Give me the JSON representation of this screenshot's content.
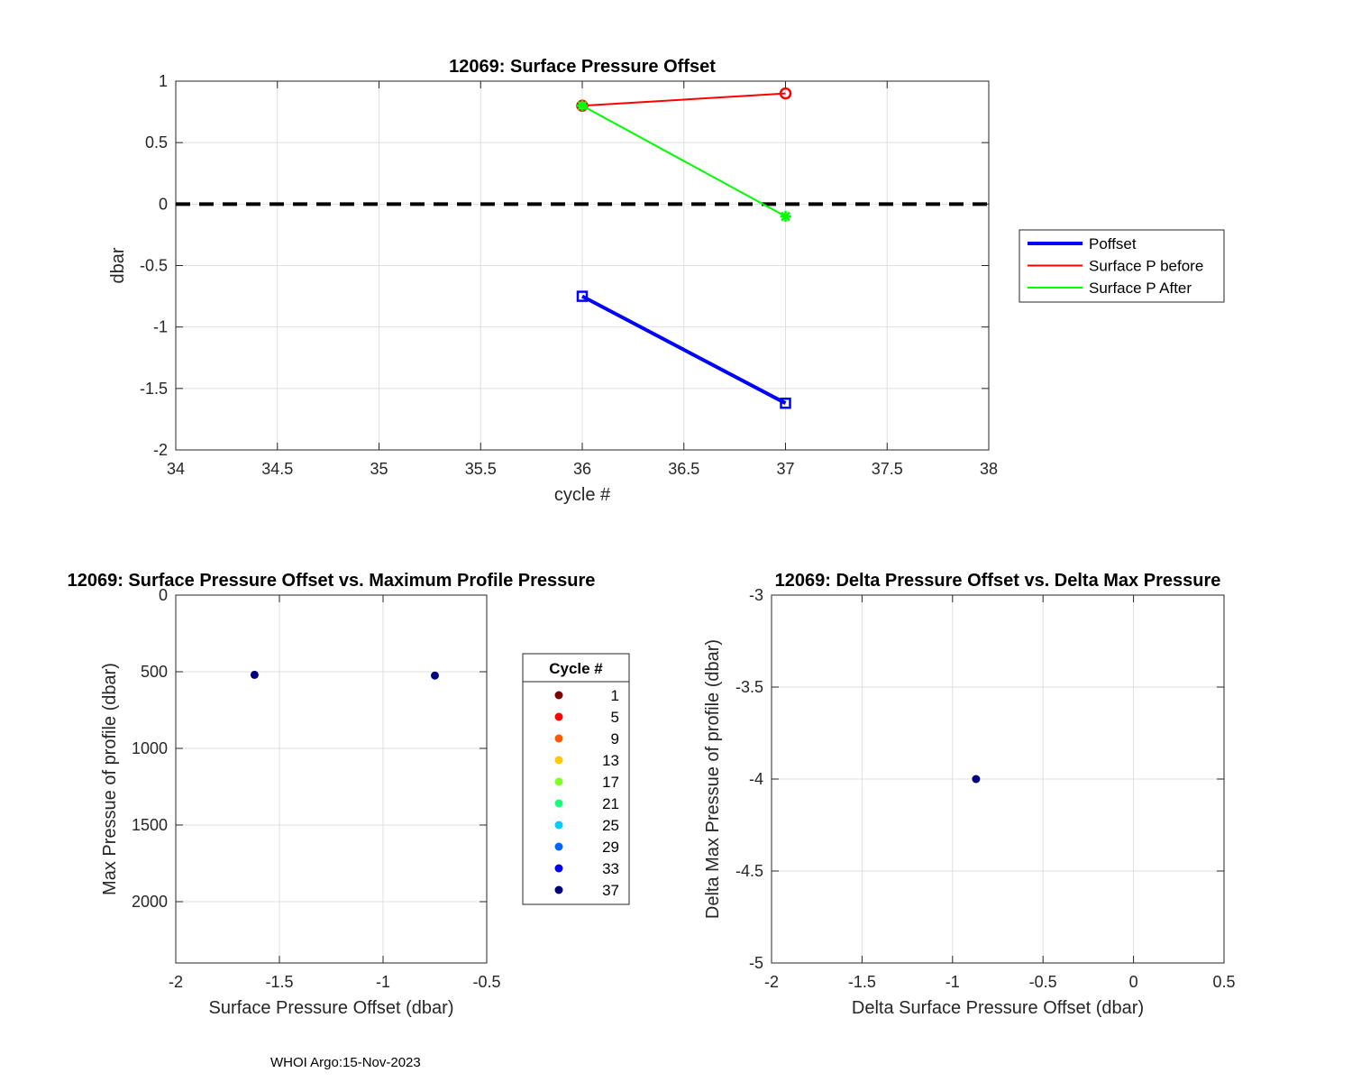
{
  "footer": "WHOI Argo:15-Nov-2023",
  "chart_data": [
    {
      "type": "line",
      "title": "12069: Surface Pressure Offset",
      "xlabel": "cycle #",
      "ylabel": "dbar",
      "xlim": [
        34,
        38
      ],
      "ylim": [
        -2,
        1
      ],
      "xticks": [
        34,
        34.5,
        35,
        35.5,
        36,
        36.5,
        37,
        37.5,
        38
      ],
      "xtick_labels": [
        "34",
        "34.5",
        "35",
        "35.5",
        "36",
        "36.5",
        "37",
        "37.5",
        "38"
      ],
      "yticks": [
        -2,
        -1.5,
        -1,
        -0.5,
        0,
        0.5,
        1
      ],
      "ytick_labels": [
        "-2",
        "-1.5",
        "-1",
        "-0.5",
        "0",
        "0.5",
        "1"
      ],
      "grid": true,
      "legend_position": "outside-right",
      "reference_line": {
        "y": 0,
        "style": "dashed",
        "color": "#000000"
      },
      "series": [
        {
          "name": "Poffset",
          "x": [
            36,
            37
          ],
          "y": [
            -0.75,
            -1.62
          ],
          "color": "#0000ff",
          "marker": "square",
          "width": "thick"
        },
        {
          "name": "Surface P before",
          "x": [
            36,
            37
          ],
          "y": [
            0.8,
            0.9
          ],
          "color": "#ff0000",
          "marker": "circle",
          "width": "thin"
        },
        {
          "name": "Surface P After",
          "x": [
            36,
            37
          ],
          "y": [
            0.8,
            -0.1
          ],
          "color": "#00ff00",
          "marker": "asterisk",
          "width": "thin"
        }
      ]
    },
    {
      "type": "scatter",
      "title": "12069: Surface Pressure Offset vs. Maximum Profile Pressure",
      "xlabel": "Surface Pressure Offset (dbar)",
      "ylabel": "Max Pressue of profile (dbar)",
      "xlim": [
        -2,
        -0.5
      ],
      "ylim": [
        0,
        2400
      ],
      "y_reversed": true,
      "xticks": [
        -2,
        -1.5,
        -1,
        -0.5
      ],
      "xtick_labels": [
        "-2",
        "-1.5",
        "-1",
        "-0.5"
      ],
      "yticks": [
        0,
        500,
        1000,
        1500,
        2000
      ],
      "ytick_labels": [
        "0",
        "500",
        "1000",
        "1500",
        "2000"
      ],
      "grid": true,
      "points": [
        {
          "x": -1.62,
          "y": 520,
          "color": "#00007f"
        },
        {
          "x": -0.75,
          "y": 525,
          "color": "#00007f"
        }
      ],
      "legend": {
        "title": "Cycle #",
        "entries": [
          {
            "label": "1",
            "color": "#800000"
          },
          {
            "label": "5",
            "color": "#ff0000"
          },
          {
            "label": "9",
            "color": "#ff5a00"
          },
          {
            "label": "13",
            "color": "#ffc800"
          },
          {
            "label": "17",
            "color": "#7fff2a"
          },
          {
            "label": "21",
            "color": "#1aff7a"
          },
          {
            "label": "25",
            "color": "#00ccff"
          },
          {
            "label": "29",
            "color": "#0066ff"
          },
          {
            "label": "33",
            "color": "#0000ee"
          },
          {
            "label": "37",
            "color": "#00007f"
          }
        ]
      }
    },
    {
      "type": "scatter",
      "title": "12069: Delta Pressure Offset vs. Delta Max Pressure",
      "xlabel": "Delta Surface Pressure Offset (dbar)",
      "ylabel": "Delta Max Pressue of profile (dbar)",
      "xlim": [
        -2,
        0.5
      ],
      "ylim": [
        -5,
        -3
      ],
      "xticks": [
        -2,
        -1.5,
        -1,
        -0.5,
        0,
        0.5
      ],
      "xtick_labels": [
        "-2",
        "-1.5",
        "-1",
        "-0.5",
        "0",
        "0.5"
      ],
      "yticks": [
        -5,
        -4.5,
        -4,
        -3.5,
        -3
      ],
      "ytick_labels": [
        "-5",
        "-4.5",
        "-4",
        "-3.5",
        "-3"
      ],
      "grid": true,
      "points": [
        {
          "x": -0.87,
          "y": -4,
          "color": "#00007f"
        }
      ]
    }
  ]
}
